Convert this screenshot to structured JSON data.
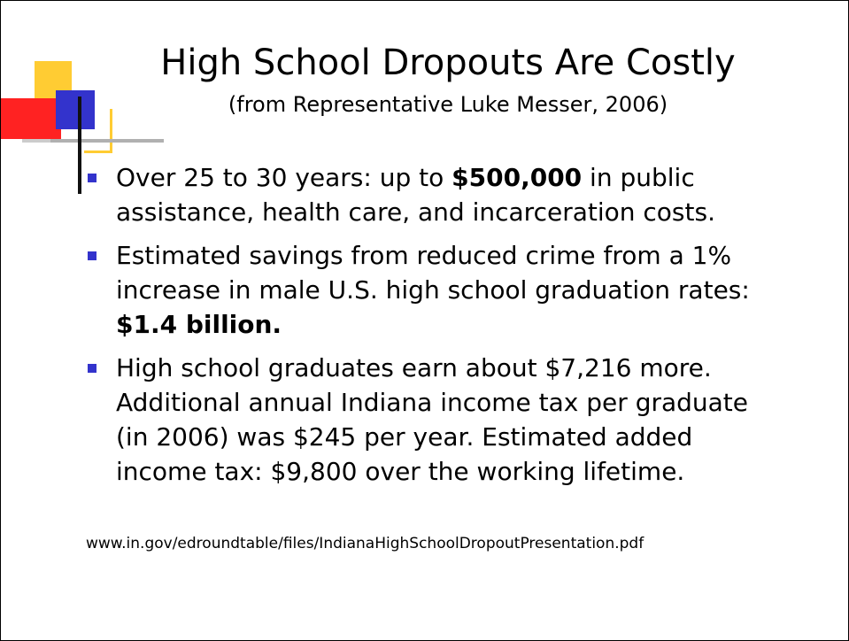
{
  "slide": {
    "title": "High School Dropouts Are Costly",
    "subtitle": "(from Representative Luke Messer, 2006)",
    "bullets": [
      {
        "line1_pre": "Over 25 to 30 years: up to ",
        "line1_bold": "$500,000",
        "line1_post": " in public",
        "line2": "assistance,  health care, and incarceration costs."
      },
      {
        "line1": "Estimated savings from reduced crime from a 1%",
        "line2": "increase in male U.S. high school graduation rates:",
        "line3_bold": "$1.4 billion."
      },
      {
        "line1": "High school graduates earn about $7,216 more.",
        "line2": "Additional annual Indiana income tax per graduate",
        "line3": "(in 2006) was $245 per year. Estimated added",
        "line4": "income tax: $9,800 over the working lifetime."
      }
    ],
    "source_url": "www.in.gov/edroundtable/files/IndianaHighSchoolDropoutPresentation.pdf"
  },
  "colors": {
    "bullet": "#3333cc",
    "deco_yellow": "#ffcc33",
    "deco_blue": "#3333cc",
    "deco_red": "#ff2222"
  }
}
